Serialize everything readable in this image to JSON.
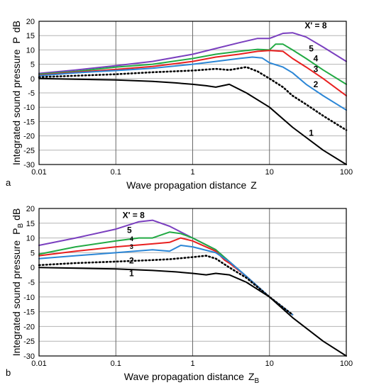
{
  "chart_data": [
    {
      "type": "line",
      "panel_label": "a",
      "xlabel_main": "Wave propagation distance",
      "xlabel_symbol": "Z",
      "xlabel_sub": "",
      "ylabel_main": "Integrated sound pressure",
      "ylabel_symbol": "P",
      "ylabel_sub": "",
      "ylabel_unit": "dB",
      "xscale": "log",
      "xlim": [
        0.01,
        100
      ],
      "ylim": [
        -30,
        20
      ],
      "x_ticks": [
        0.01,
        0.1,
        1,
        10,
        100
      ],
      "x_tick_labels": [
        "0.01",
        "0.1",
        "1",
        "10",
        "100"
      ],
      "y_ticks": [
        20,
        15,
        10,
        5,
        0,
        -5,
        -10,
        -15,
        -20,
        -25,
        -30
      ],
      "y_tick_labels": [
        "20",
        "15",
        "10",
        "5",
        "0",
        "-5",
        "-10",
        "-15",
        "-20",
        "-25",
        "-30"
      ],
      "grid": true,
      "series": [
        {
          "name": "X' = 8",
          "color": "#7a3fbf",
          "dash": "solid",
          "x": [
            0.01,
            0.03,
            0.1,
            0.3,
            1,
            2,
            4,
            7,
            10,
            15,
            20,
            30,
            50,
            100
          ],
          "y": [
            1.8,
            3,
            4.5,
            6,
            8.5,
            10.5,
            12.5,
            14,
            14,
            15.8,
            16,
            14.5,
            11,
            6
          ]
        },
        {
          "name": "5",
          "color": "#22aa44",
          "dash": "solid",
          "x": [
            0.01,
            0.03,
            0.1,
            0.3,
            1,
            2,
            4,
            7,
            10,
            12,
            15,
            20,
            30,
            50,
            100
          ],
          "y": [
            1.5,
            2.5,
            4,
            5,
            7,
            8.5,
            9.5,
            10.2,
            10,
            12,
            12,
            10,
            7,
            3,
            -2
          ]
        },
        {
          "name": "4",
          "color": "#e82020",
          "dash": "solid",
          "x": [
            0.01,
            0.03,
            0.1,
            0.3,
            1,
            2,
            4,
            7,
            10,
            15,
            20,
            30,
            50,
            100
          ],
          "y": [
            1.2,
            2.2,
            3.2,
            4.2,
            6,
            7.5,
            8.5,
            9.5,
            9.8,
            9.5,
            7,
            4,
            0,
            -6
          ]
        },
        {
          "name": "3",
          "color": "#2b86d6",
          "dash": "solid",
          "x": [
            0.01,
            0.03,
            0.1,
            0.3,
            1,
            2,
            4,
            6,
            8,
            10,
            15,
            20,
            30,
            50,
            100
          ],
          "y": [
            1,
            2,
            2.8,
            3.6,
            5,
            6,
            7,
            7.5,
            7.2,
            5.5,
            4,
            2,
            -2,
            -6,
            -11
          ]
        },
        {
          "name": "2",
          "color": "#000000",
          "dash": "dotted",
          "x": [
            0.01,
            0.03,
            0.1,
            0.3,
            1,
            2,
            3,
            5,
            7,
            10,
            15,
            20,
            30,
            50,
            100
          ],
          "y": [
            0.5,
            1,
            1.5,
            2.2,
            2.8,
            3.4,
            3,
            4,
            2.5,
            0,
            -3,
            -6,
            -9,
            -13,
            -18
          ]
        },
        {
          "name": "1",
          "color": "#000000",
          "dash": "solid",
          "x": [
            0.01,
            0.1,
            0.3,
            0.6,
            1,
            1.5,
            2,
            3,
            5,
            10,
            20,
            50,
            100
          ],
          "y": [
            0,
            -0.5,
            -1,
            -1.5,
            -2,
            -2.5,
            -3,
            -2,
            -5,
            -10,
            -17,
            -25,
            -30
          ]
        }
      ],
      "series_labels": [
        {
          "text": "X' = 8",
          "at": [
            40,
            17.5
          ],
          "size": "large"
        },
        {
          "text": "5",
          "at": [
            35,
            9.5
          ],
          "size": "large"
        },
        {
          "text": "4",
          "at": [
            40,
            6
          ],
          "size": "large"
        },
        {
          "text": "3",
          "at": [
            40,
            2.3
          ],
          "size": "large"
        },
        {
          "text": "2",
          "at": [
            40,
            -3
          ],
          "size": "large"
        },
        {
          "text": "1",
          "at": [
            35,
            -20
          ],
          "size": "large"
        }
      ]
    },
    {
      "type": "line",
      "panel_label": "b",
      "xlabel_main": "Wave propagation distance",
      "xlabel_symbol": "Z",
      "xlabel_sub": "B",
      "ylabel_main": "Integrated sound pressure",
      "ylabel_symbol": "P",
      "ylabel_sub": "B",
      "ylabel_unit": "dB",
      "xscale": "log",
      "xlim": [
        0.01,
        100
      ],
      "ylim": [
        -30,
        20
      ],
      "x_ticks": [
        0.01,
        0.1,
        1,
        10,
        100
      ],
      "x_tick_labels": [
        "0.01",
        "0.1",
        "1",
        "10",
        "100"
      ],
      "y_ticks": [
        20,
        15,
        10,
        5,
        0,
        -5,
        -10,
        -15,
        -20,
        -25,
        -30
      ],
      "y_tick_labels": [
        "20",
        "15",
        "10",
        "5",
        "0",
        "-5",
        "-10",
        "-15",
        "-20",
        "-25",
        "-30"
      ],
      "grid": true,
      "series": [
        {
          "name": "X' = 8",
          "color": "#7a3fbf",
          "dash": "solid",
          "x": [
            0.01,
            0.03,
            0.1,
            0.2,
            0.3,
            0.5,
            1,
            2,
            3,
            5,
            10,
            20
          ],
          "y": [
            7.5,
            10,
            13,
            15.5,
            16,
            14,
            10,
            6,
            2,
            -3,
            -10,
            -16
          ]
        },
        {
          "name": "5",
          "color": "#22aa44",
          "dash": "solid",
          "x": [
            0.01,
            0.03,
            0.1,
            0.2,
            0.3,
            0.5,
            0.7,
            1,
            2,
            3,
            5,
            10,
            20
          ],
          "y": [
            4.5,
            7,
            9,
            10,
            10,
            12,
            11.5,
            10,
            6,
            2,
            -3,
            -10,
            -16
          ]
        },
        {
          "name": "4",
          "color": "#e82020",
          "dash": "solid",
          "x": [
            0.01,
            0.03,
            0.1,
            0.3,
            0.5,
            0.7,
            1,
            2,
            2.6,
            3,
            5,
            10,
            20
          ],
          "y": [
            4,
            5.5,
            7,
            8,
            8.5,
            10,
            9,
            5.5,
            2.5,
            1.5,
            -3,
            -10,
            -16
          ]
        },
        {
          "name": "3",
          "color": "#2b86d6",
          "dash": "solid",
          "x": [
            0.01,
            0.03,
            0.1,
            0.3,
            0.5,
            0.7,
            1,
            2,
            3,
            5,
            10,
            20
          ],
          "y": [
            3,
            4,
            5,
            6,
            5.5,
            7.5,
            7,
            5,
            2,
            -3,
            -10,
            -16
          ]
        },
        {
          "name": "2",
          "color": "#000000",
          "dash": "dotted",
          "x": [
            0.01,
            0.03,
            0.1,
            0.3,
            0.5,
            1,
            1.5,
            2,
            3,
            5,
            10,
            20
          ],
          "y": [
            0.8,
            1.5,
            2,
            2.5,
            2.8,
            3.5,
            4,
            3,
            0,
            -3.5,
            -10,
            -16
          ]
        },
        {
          "name": "1",
          "color": "#000000",
          "dash": "solid",
          "x": [
            0.01,
            0.1,
            0.3,
            0.6,
            1,
            1.5,
            2,
            3,
            5,
            10,
            20,
            50,
            100
          ],
          "y": [
            0,
            -0.5,
            -1,
            -1.5,
            -2,
            -2.5,
            -2,
            -2.5,
            -5,
            -10,
            -17,
            -25,
            -30
          ]
        }
      ],
      "series_labels": [
        {
          "text": "X' = 8",
          "at": [
            0.17,
            16.8
          ],
          "size": "large"
        },
        {
          "text": "5",
          "at": [
            0.15,
            11.7
          ],
          "size": "large"
        },
        {
          "text": "4",
          "at": [
            0.16,
            9.0
          ],
          "size": "small"
        },
        {
          "text": "3",
          "at": [
            0.16,
            6.3
          ],
          "size": "small"
        },
        {
          "text": "2",
          "at": [
            0.16,
            1.4
          ],
          "size": "large"
        },
        {
          "text": "1",
          "at": [
            0.16,
            -3.0
          ],
          "size": "large"
        }
      ]
    }
  ]
}
